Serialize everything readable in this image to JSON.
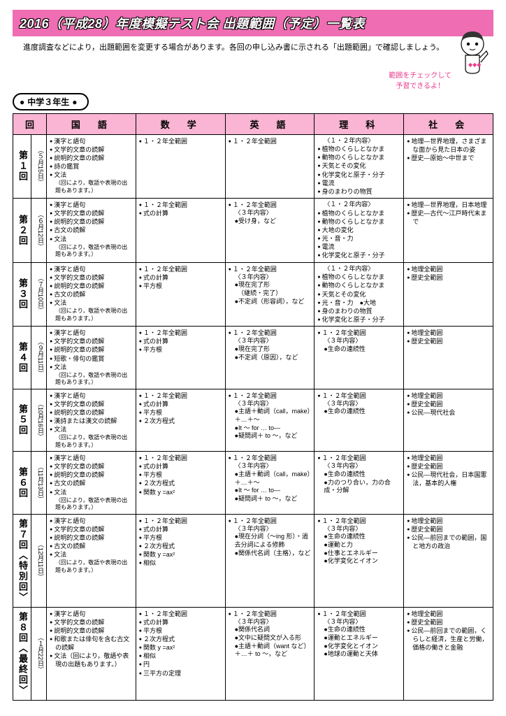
{
  "title": "2016（平成28）年度模擬テスト会 出題範囲（予定）一覧表",
  "intro": "　進度調査などにより，出題範囲を変更する場合があります。各回の申し込み書に示される「出題範囲」で確認しましょう。",
  "bubble_line1": "範囲をチェックして",
  "bubble_line2": "予習できるよ！",
  "grade": "中学３年生",
  "headers": {
    "round": "回",
    "kokugo": "国　語",
    "sugaku": "数　学",
    "eigo": "英　語",
    "rika": "理　科",
    "shakai": "社　会"
  },
  "rows": [
    {
      "label": "第１回",
      "date": "（５月15日）",
      "kokugo": [
        "漢字と語句",
        "文学的文章の読解",
        "説明的文章の読解",
        "詩の鑑賞",
        "文法"
      ],
      "kokugo_note": "（回により，敬語や表現の出題もあります。）",
      "sugaku": [
        "１・２年全範囲"
      ],
      "eigo": [
        "１・２年全範囲"
      ],
      "rika_head": "〈１・２年内容〉",
      "rika": [
        "植物のくらしとなかま",
        "動物のくらしとなかま",
        "天気とその変化",
        "化学変化と原子・分子",
        "電流",
        "身のまわりの物質"
      ],
      "shakai": [
        "地理―世界地理，さまざまな面から見た日本の姿",
        "歴史―原始～中世まで"
      ]
    },
    {
      "label": "第２回",
      "date": "（６月12日）",
      "kokugo": [
        "漢字と語句",
        "文学的文章の読解",
        "説明的文章の読解",
        "古文の読解",
        "文法"
      ],
      "kokugo_note": "（回により，敬語や表現の出題もあります。）",
      "sugaku": [
        "１・２年全範囲",
        "式の計算"
      ],
      "eigo": [
        "１・２年全範囲"
      ],
      "eigo_sub": [
        "〈３年内容〉",
        "●受け身，など"
      ],
      "rika_head": "〈１・２年内容〉",
      "rika": [
        "植物のくらしとなかま",
        "動物のくらしとなかま",
        "大地の変化",
        "光・音・力",
        "電流",
        "化学変化と原子・分子"
      ],
      "shakai": [
        "地理―世界地理，日本地理",
        "歴史―古代～江戸時代末まで"
      ]
    },
    {
      "label": "第３回",
      "date": "（７月10日）",
      "kokugo": [
        "漢字と語句",
        "文学的文章の読解",
        "説明的文章の読解",
        "古文の読解",
        "文法"
      ],
      "kokugo_note": "（回により，敬語や表現の出題もあります。）",
      "sugaku": [
        "１・２年全範囲",
        "式の計算",
        "平方根"
      ],
      "eigo": [
        "１・２年全範囲"
      ],
      "eigo_sub": [
        "〈３年内容〉",
        "●現在完了形",
        "　（継続・完了）",
        "●不定詞（形容詞），など"
      ],
      "rika_head": "〈１・２年内容〉",
      "rika": [
        "植物のくらしとなかま",
        "動物のくらしとなかま",
        "天気とその変化",
        "光・音・力　●大地",
        "身のまわりの物質",
        "化学変化と原子・分子"
      ],
      "shakai": [
        "地理全範囲",
        "歴史全範囲"
      ]
    },
    {
      "label": "第４回",
      "date": "（９月11日）",
      "kokugo": [
        "漢字と語句",
        "文学的文章の読解",
        "説明的文章の読解",
        "短歌・俳句の鑑賞",
        "文法"
      ],
      "kokugo_note": "（回により，敬語や表現の出題もあります。）",
      "sugaku": [
        "１・２年全範囲",
        "式の計算",
        "平方根"
      ],
      "eigo": [
        "１・２年全範囲"
      ],
      "eigo_sub": [
        "〈３年内容〉",
        "●現在完了形",
        "●不定詞（原因），など"
      ],
      "rika": [
        "１・２年全範囲"
      ],
      "rika_sub": [
        "〈３年内容〉",
        "●生命の連続性"
      ],
      "shakai": [
        "地理全範囲",
        "歴史全範囲"
      ]
    },
    {
      "label": "第５回",
      "date": "（10月16日）",
      "kokugo": [
        "漢字と語句",
        "文学的文章の読解",
        "説明的文章の読解",
        "漢詩または漢文の読解",
        "文法"
      ],
      "kokugo_note": "（回により，敬語や表現の出題もあります。）",
      "sugaku": [
        "１・２年全範囲",
        "式の計算",
        "平方根",
        "２次方程式"
      ],
      "eigo": [
        "１・２年全範囲"
      ],
      "eigo_sub": [
        "〈３年内容〉",
        "●主語＋動詞（call，make）＋…＋～",
        "●It ～ for … to―",
        "●疑問詞＋ to ～，など"
      ],
      "rika": [
        "１・２年全範囲"
      ],
      "rika_sub": [
        "〈３年内容〉",
        "●生命の連続性"
      ],
      "shakai": [
        "地理全範囲",
        "歴史全範囲",
        "公民―現代社会"
      ]
    },
    {
      "label": "第６回",
      "date": "（11月13日）",
      "kokugo": [
        "漢字と語句",
        "文学的文章の読解",
        "説明的文章の読解",
        "古文の読解",
        "文法"
      ],
      "kokugo_note": "（回により，敬語や表現の出題もあります。）",
      "sugaku": [
        "１・２年全範囲",
        "式の計算",
        "平方根",
        "２次方程式",
        "関数 y =ax²"
      ],
      "eigo": [
        "１・２年全範囲"
      ],
      "eigo_sub": [
        "〈３年内容〉",
        "●主語＋動詞（call，make）＋…＋～",
        "●It ～ for … to―",
        "●疑問詞＋ to ～，など"
      ],
      "rika": [
        "１・２年全範囲"
      ],
      "rika_sub": [
        "〈３年内容〉",
        "●生命の連続性",
        "●力のつり合い，力の合成・分解"
      ],
      "shakai": [
        "地理全範囲",
        "歴史全範囲",
        "公民―現代社会，日本国憲法，基本的人権"
      ]
    },
    {
      "label": "第７回︿特別回﹀",
      "date": "（12月11日）",
      "kokugo": [
        "漢字と語句",
        "文学的文章の読解",
        "説明的文章の読解",
        "古文の読解",
        "文法"
      ],
      "kokugo_note": "（回により，敬語や表現の出題もあります。）",
      "sugaku": [
        "１・２年全範囲",
        "式の計算",
        "平方根",
        "２次方程式",
        "関数 y =ax²",
        "相似"
      ],
      "eigo": [
        "１・２年全範囲"
      ],
      "eigo_sub": [
        "〈３年内容〉",
        "●現在分詞（～ing 形）・過去分詞による修飾",
        "●関係代名詞（主格），など"
      ],
      "rika": [
        "１・２年全範囲"
      ],
      "rika_sub": [
        "〈３年内容〉",
        "●生命の連続性",
        "●運動と力",
        "●仕事とエネルギー",
        "●化学変化とイオン"
      ],
      "shakai": [
        "地理全範囲",
        "歴史全範囲",
        "公民―前回までの範囲，国と地方の政治"
      ]
    },
    {
      "label": "第８回︿最終回﹀",
      "date": "（１月22日）",
      "kokugo": [
        "漢字と語句",
        "文学的文章の読解",
        "説明的文章の読解",
        "和歌または俳句を含む古文の読解",
        "文法（回により，敬語や表現の出題もあります。）"
      ],
      "sugaku": [
        "１・２年全範囲",
        "式の計算",
        "平方根",
        "２次方程式",
        "関数 y =ax²",
        "相似",
        "円",
        "三平方の定理"
      ],
      "eigo": [
        "１・２年全範囲"
      ],
      "eigo_sub": [
        "〈３年内容〉",
        "●関係代名詞",
        "●文中に疑問文が入る形",
        "●主語＋動詞（want など）＋…＋ to ～，など"
      ],
      "rika": [
        "１・２年全範囲"
      ],
      "rika_sub": [
        "〈３年内容〉",
        "●生命の連続性",
        "●運動とエネルギー",
        "●化学変化とイオン",
        "●地球の運動と天体"
      ],
      "shakai": [
        "地理全範囲",
        "歴史全範囲",
        "公民―前回までの範囲，くらしと経済，生産と労働，価格の働きと金融"
      ]
    }
  ]
}
